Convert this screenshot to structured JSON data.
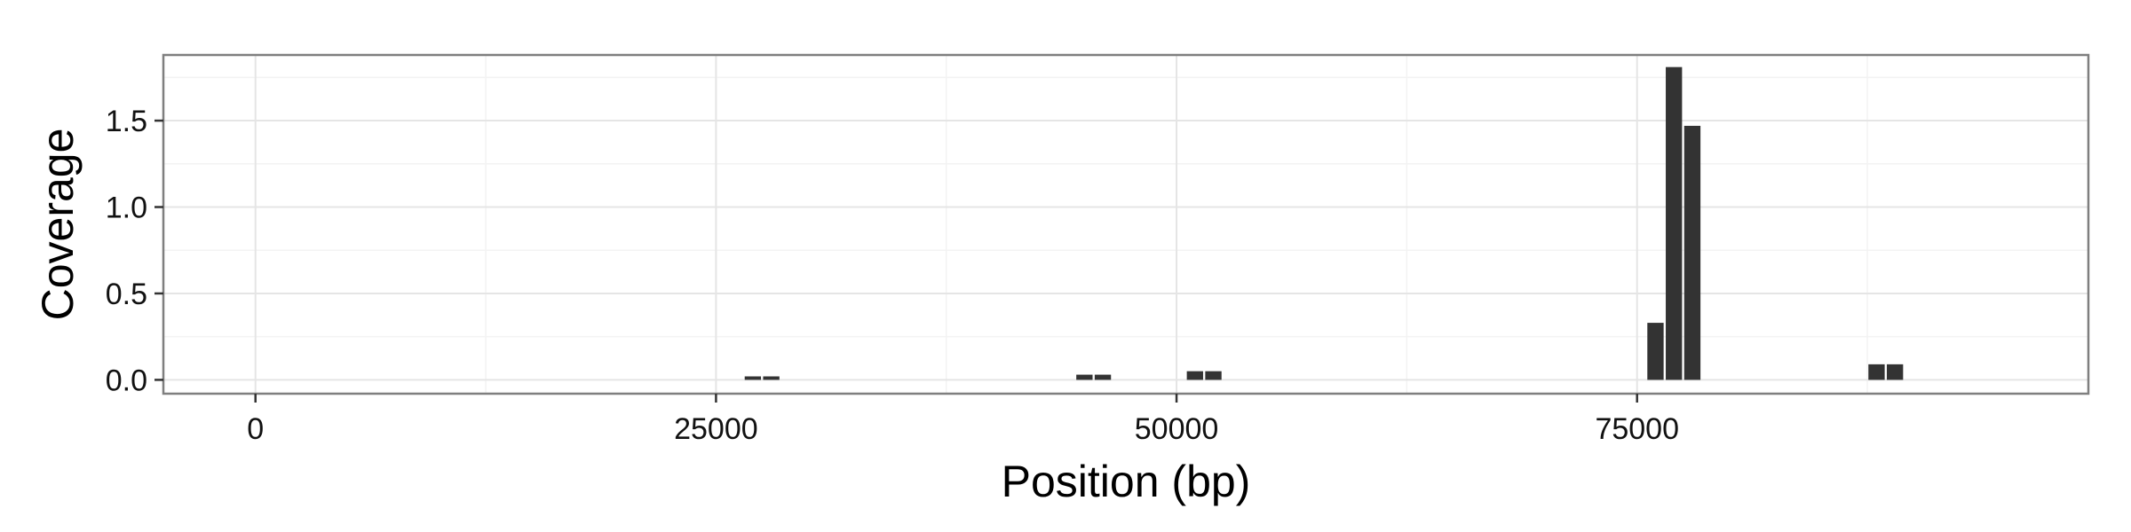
{
  "chart_data": {
    "type": "bar",
    "title": "",
    "xlabel": "Position (bp)",
    "ylabel": "Coverage",
    "xlim": [
      -5000,
      99500
    ],
    "ylim": [
      -0.08,
      1.88
    ],
    "x_ticks": [
      0,
      25000,
      50000,
      75000
    ],
    "x_tick_labels": [
      "0",
      "25000",
      "50000",
      "75000"
    ],
    "y_ticks": [
      0.0,
      0.5,
      1.0,
      1.5
    ],
    "y_tick_labels": [
      "0.0",
      "0.5",
      "1.0",
      "1.5"
    ],
    "grid": true,
    "legend": "none",
    "bin_width": 1000,
    "x": [
      27000,
      28000,
      45000,
      46000,
      51000,
      52000,
      76000,
      77000,
      78000,
      88000,
      89000
    ],
    "values": [
      0.02,
      0.02,
      0.03,
      0.03,
      0.05,
      0.05,
      0.33,
      1.81,
      1.47,
      0.09,
      0.09
    ],
    "colors": {
      "bar": "#333333",
      "panel_background": "#ffffff",
      "grid_major": "#e5e5e5",
      "grid_minor": "#f3f3f3",
      "panel_border": "#7f7f7f"
    }
  }
}
